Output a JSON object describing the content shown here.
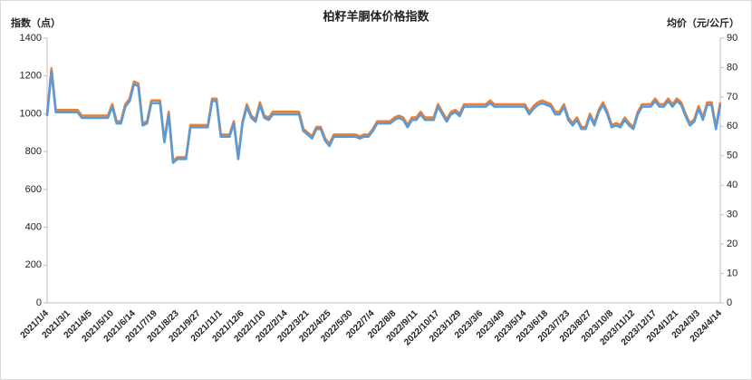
{
  "chart_data": {
    "type": "line",
    "title": "柏籽羊胴体价格指数",
    "y_label": "指数（点）",
    "y2_label": "均价（元/公斤）",
    "categories": [
      "2021/1/4",
      null,
      null,
      null,
      null,
      "2021/3/1",
      null,
      null,
      null,
      null,
      "2021/4/5",
      null,
      null,
      null,
      null,
      "2021/5/10",
      null,
      null,
      null,
      null,
      "2021/6/14",
      null,
      null,
      null,
      null,
      "2021/7/19",
      null,
      null,
      null,
      null,
      "2021/8/23",
      null,
      null,
      null,
      null,
      "2021/9/27",
      null,
      null,
      null,
      null,
      "2021/11/1",
      null,
      null,
      null,
      null,
      "2021/12/6",
      null,
      null,
      null,
      null,
      "2022/1/10",
      null,
      null,
      null,
      null,
      "2022/2/14",
      null,
      null,
      null,
      null,
      "2022/3/21",
      null,
      null,
      null,
      null,
      "2022/4/25",
      null,
      null,
      null,
      null,
      "2022/5/30",
      null,
      null,
      null,
      null,
      "2022/7/4",
      null,
      null,
      null,
      null,
      "2022/8/8",
      null,
      null,
      null,
      null,
      "2022/9/11",
      null,
      null,
      null,
      null,
      "2022/10/17",
      null,
      null,
      null,
      null,
      "2023/1/29",
      null,
      null,
      null,
      null,
      "2023/3/6",
      null,
      null,
      null,
      null,
      "2023/4/9",
      null,
      null,
      null,
      null,
      "2023/5/14",
      null,
      null,
      null,
      null,
      "2023/6/18",
      null,
      null,
      null,
      null,
      "2023/7/23",
      null,
      null,
      null,
      null,
      "2023/8/27",
      null,
      null,
      null,
      null,
      "2023/10/8",
      null,
      null,
      null,
      null,
      "2023/11/12",
      null,
      null,
      null,
      null,
      "2023/12/17",
      null,
      null,
      null,
      null,
      "2024/1/21",
      null,
      null,
      null,
      null,
      "2024/3/3",
      null,
      null,
      null,
      null,
      "2024/4/14"
    ],
    "series": [
      {
        "color": "#ed7d31",
        "axis": "y",
        "values": [
          1000,
          1240,
          1020,
          1020,
          1020,
          1020,
          1020,
          1020,
          990,
          990,
          990,
          990,
          990,
          990,
          990,
          1050,
          960,
          960,
          1050,
          1080,
          1170,
          1160,
          950,
          960,
          1070,
          1070,
          1070,
          860,
          1010,
          750,
          770,
          770,
          770,
          940,
          940,
          940,
          940,
          940,
          1080,
          1080,
          890,
          890,
          890,
          960,
          770,
          960,
          1050,
          990,
          970,
          1060,
          990,
          980,
          1010,
          1010,
          1010,
          1010,
          1010,
          1010,
          1010,
          920,
          900,
          880,
          930,
          930,
          870,
          840,
          890,
          890,
          890,
          890,
          890,
          890,
          880,
          890,
          890,
          920,
          960,
          960,
          960,
          960,
          980,
          990,
          980,
          940,
          980,
          980,
          1010,
          980,
          980,
          980,
          1050,
          1010,
          970,
          1010,
          1020,
          1000,
          1050,
          1050,
          1050,
          1050,
          1050,
          1050,
          1070,
          1050,
          1050,
          1050,
          1050,
          1050,
          1050,
          1050,
          1050,
          1010,
          1040,
          1060,
          1070,
          1060,
          1050,
          1010,
          1010,
          1050,
          980,
          950,
          980,
          930,
          930,
          1000,
          950,
          1020,
          1060,
          1010,
          940,
          950,
          940,
          980,
          950,
          930,
          1010,
          1050,
          1050,
          1050,
          1080,
          1050,
          1050,
          1080,
          1050,
          1080,
          1060,
          1000,
          950,
          970,
          1040,
          980,
          1060,
          1060,
          930,
          1060
        ]
      },
      {
        "color": "#5b9bd5",
        "axis": "y2",
        "values": [
          63.5,
          78.7,
          64.8,
          64.8,
          64.8,
          64.8,
          64.8,
          64.8,
          62.9,
          62.9,
          62.9,
          62.9,
          62.9,
          62.9,
          62.9,
          66.7,
          61.0,
          61.0,
          66.7,
          68.6,
          74.3,
          73.7,
          60.3,
          61.0,
          67.9,
          67.9,
          67.9,
          54.6,
          64.1,
          47.6,
          48.9,
          48.9,
          48.9,
          59.7,
          59.7,
          59.7,
          59.7,
          59.7,
          68.6,
          68.6,
          56.5,
          56.5,
          56.5,
          61.0,
          48.9,
          61.0,
          66.7,
          62.9,
          61.6,
          67.3,
          62.9,
          62.2,
          64.1,
          64.1,
          64.1,
          64.1,
          64.1,
          64.1,
          64.1,
          58.4,
          57.2,
          55.9,
          59.1,
          59.1,
          55.2,
          53.3,
          56.5,
          56.5,
          56.5,
          56.5,
          56.5,
          56.5,
          55.9,
          56.5,
          56.5,
          58.4,
          61.0,
          61.0,
          61.0,
          61.0,
          62.2,
          62.9,
          62.2,
          59.7,
          62.2,
          62.2,
          64.1,
          62.2,
          62.2,
          62.2,
          66.7,
          64.1,
          61.6,
          64.1,
          64.8,
          63.5,
          66.7,
          66.7,
          66.7,
          66.7,
          66.7,
          66.7,
          67.9,
          66.7,
          66.7,
          66.7,
          66.7,
          66.7,
          66.7,
          66.7,
          66.7,
          64.1,
          66.0,
          67.3,
          67.9,
          67.3,
          66.7,
          64.1,
          64.1,
          66.7,
          62.2,
          60.3,
          62.2,
          59.1,
          59.1,
          63.5,
          60.3,
          64.8,
          67.3,
          64.1,
          59.7,
          60.3,
          59.7,
          62.2,
          60.3,
          59.1,
          64.1,
          66.7,
          66.7,
          66.7,
          68.6,
          66.7,
          66.7,
          68.6,
          66.7,
          68.6,
          67.3,
          63.5,
          60.3,
          61.6,
          66.0,
          62.2,
          67.3,
          67.3,
          59.1,
          67.3
        ]
      }
    ],
    "ylim": [
      0,
      1400
    ],
    "yticks": [
      0,
      200,
      400,
      600,
      800,
      1000,
      1200,
      1400
    ],
    "y2lim": [
      0,
      90
    ],
    "y2ticks": [
      0,
      10,
      20,
      30,
      40,
      50,
      60,
      70,
      80,
      90
    ],
    "grid": false
  }
}
